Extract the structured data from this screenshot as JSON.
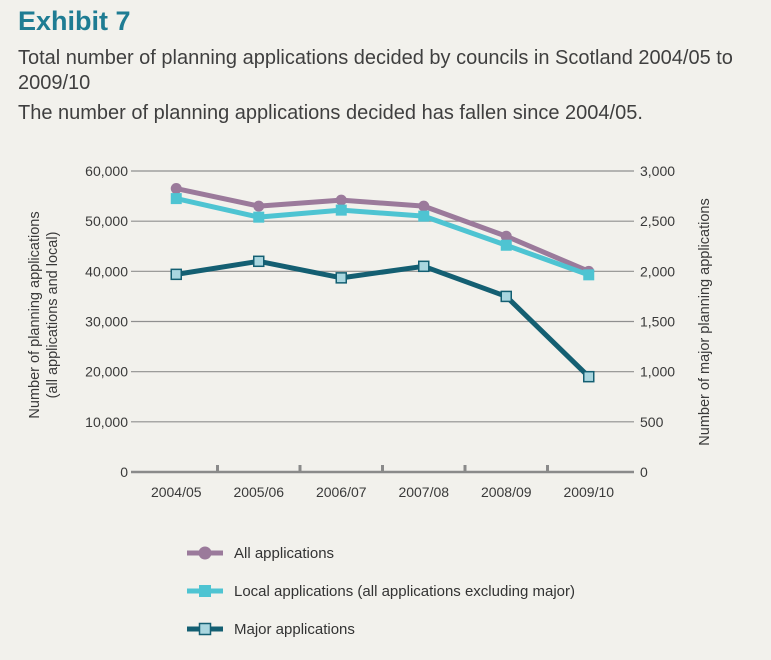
{
  "header": {
    "exhibit": "Exhibit 7",
    "title": "Total number of planning applications decided by councils in Scotland 2004/05 to 2009/10",
    "note": "The number of planning applications decided has fallen since 2004/05."
  },
  "chart_data": {
    "type": "line",
    "categories": [
      "2004/05",
      "2005/06",
      "2006/07",
      "2007/08",
      "2008/09",
      "2009/10"
    ],
    "left_axis": {
      "label_line1": "Number of planning applications",
      "label_line2": "(all applications and local)",
      "ylim": [
        0,
        60000
      ],
      "ticks": [
        0,
        10000,
        20000,
        30000,
        40000,
        50000,
        60000
      ],
      "tick_labels": [
        "0",
        "10,000",
        "20,000",
        "30,000",
        "40,000",
        "50,000",
        "60,000"
      ]
    },
    "right_axis": {
      "label": "Number of major planning applications",
      "ylim": [
        0,
        3000
      ],
      "ticks": [
        0,
        500,
        1000,
        1500,
        2000,
        2500,
        3000
      ],
      "tick_labels": [
        "0",
        "500",
        "1,000",
        "1,500",
        "2,000",
        "2,500",
        "3,000"
      ]
    },
    "series": [
      {
        "name": "All applications",
        "axis": "left",
        "marker": "circle",
        "color": "#9b7a9b",
        "values": [
          56500,
          53000,
          54200,
          53000,
          47000,
          40000
        ]
      },
      {
        "name": "Local applications (all applications excluding major)",
        "axis": "left",
        "marker": "square",
        "color": "#4ec4d2",
        "values": [
          54500,
          50800,
          52200,
          51000,
          45200,
          39300
        ]
      },
      {
        "name": "Major applications",
        "axis": "right",
        "marker": "square-open",
        "color": "#145f72",
        "values": [
          1970,
          2100,
          1935,
          2050,
          1750,
          950
        ]
      }
    ],
    "grid": true,
    "legend_position": "bottom"
  }
}
